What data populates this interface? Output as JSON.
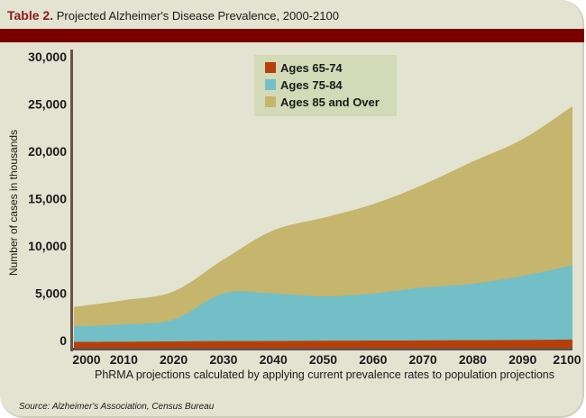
{
  "header": {
    "table_number": "Table 2.",
    "title": "Projected Alzheimer's Disease Prevalence, 2000-2100"
  },
  "footer": {
    "source": "Source: Alzheimer's Association, Census Bureau"
  },
  "colors": {
    "band": "#7a0000",
    "background": "#e3e3d1",
    "axis": "#6b5148",
    "ages_65_74": "#b84008",
    "ages_75_84": "#72bfc8",
    "ages_85_over": "#c6b56c"
  },
  "chart_data": {
    "type": "area",
    "stacked": true,
    "title": "Projected Alzheimer's Disease Prevalence, 2000-2100",
    "xlabel": "PhRMA projections calculated by applying current prevalence rates to population projections",
    "ylabel": "Number of cases in thousands",
    "x": [
      2000,
      2010,
      2020,
      2030,
      2040,
      2050,
      2060,
      2070,
      2080,
      2090,
      2100
    ],
    "x_tick_labels": [
      "2000",
      "2010",
      "2020",
      "2030",
      "2040",
      "2050",
      "2060",
      "2070",
      "2080",
      "2090",
      "2100"
    ],
    "y_ticks": [
      0,
      5000,
      10000,
      15000,
      20000,
      25000,
      30000
    ],
    "y_tick_labels": [
      "0",
      "5,000",
      "10,000",
      "15,000",
      "20,000",
      "25,000",
      "30,000"
    ],
    "ylim": [
      0,
      30000
    ],
    "grid": false,
    "legend_position": "top-center",
    "series": [
      {
        "name": "Ages 65-74",
        "color": "#b84008",
        "values": [
          600,
          620,
          650,
          680,
          700,
          720,
          740,
          760,
          780,
          800,
          850
        ]
      },
      {
        "name": "Ages 75-84",
        "color": "#72bfc8",
        "values": [
          1600,
          1780,
          2250,
          4920,
          4900,
          4580,
          4860,
          5440,
          5820,
          6600,
          7650
        ]
      },
      {
        "name": "Ages 85 and Over",
        "color": "#c6b56c",
        "values": [
          2000,
          2500,
          2900,
          3500,
          6500,
          8100,
          9200,
          10600,
          12600,
          14100,
          16400
        ]
      }
    ]
  }
}
